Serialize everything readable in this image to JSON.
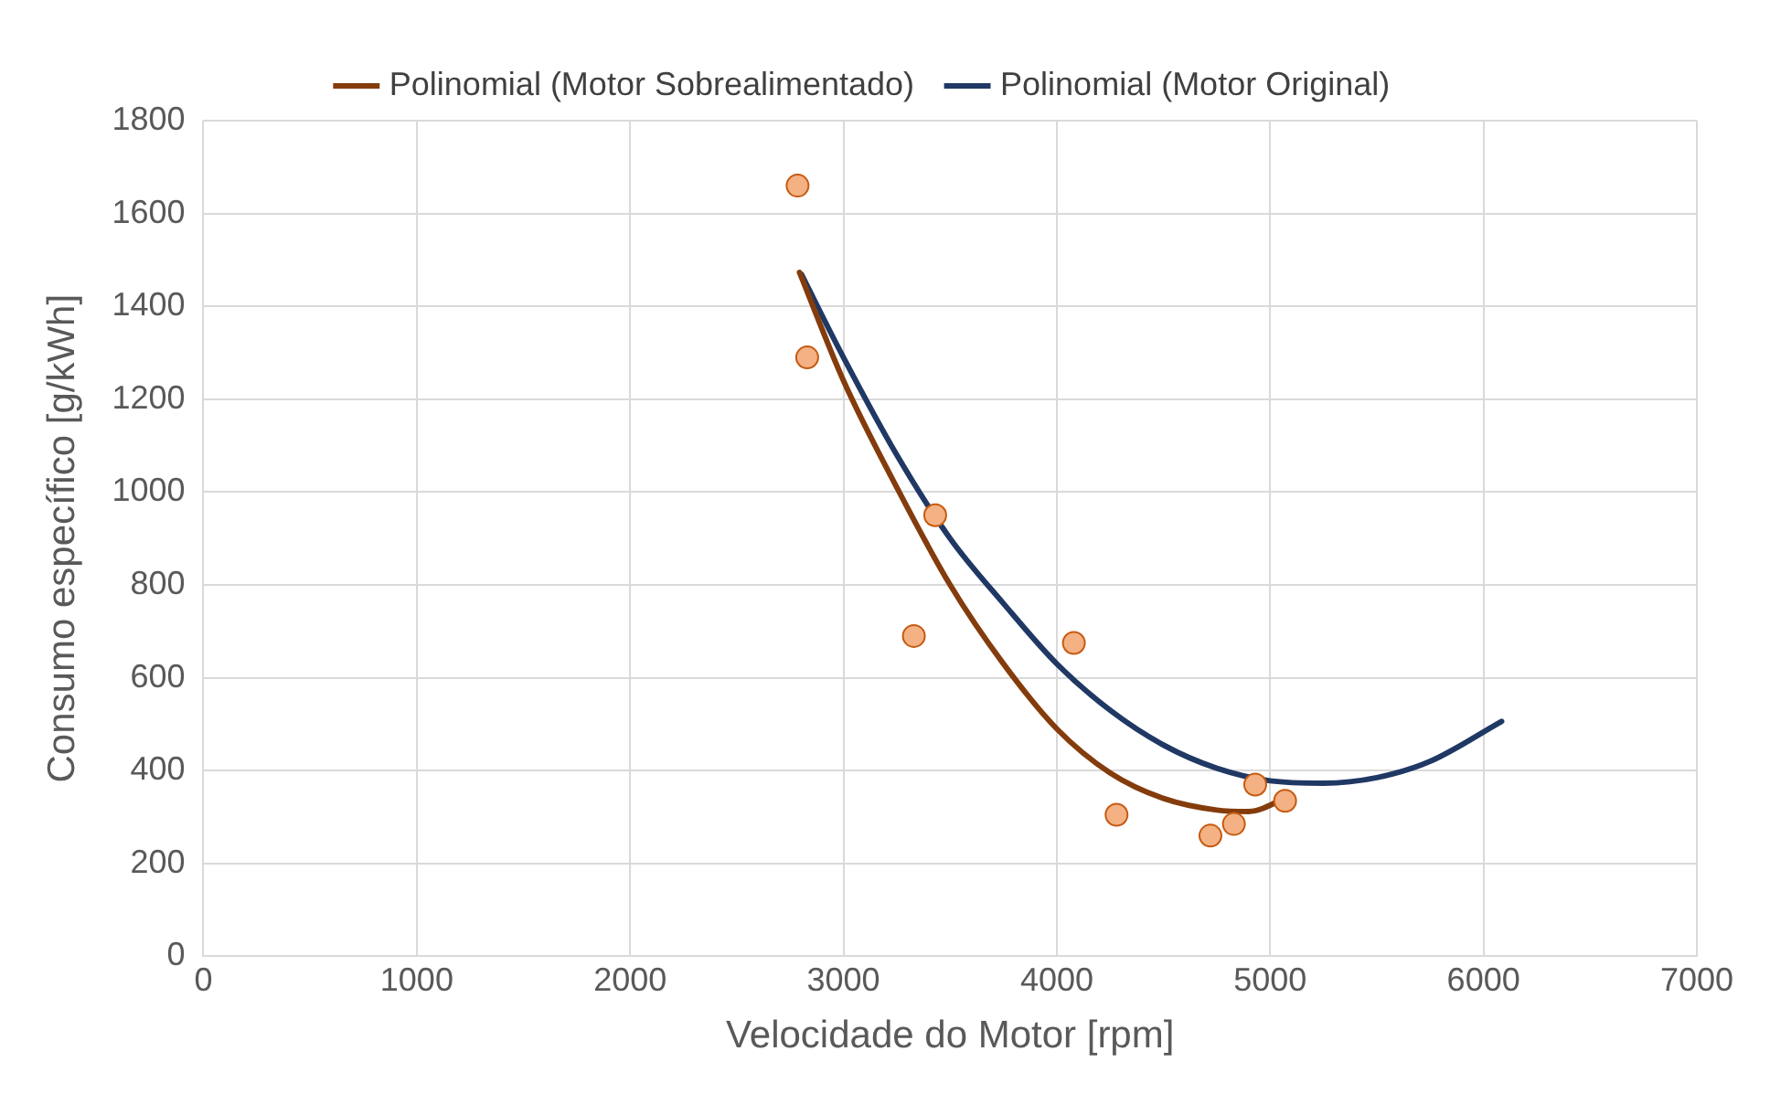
{
  "chart_data": {
    "type": "scatter",
    "xlabel": "Velocidade do Motor [rpm]",
    "ylabel": "Consumo específico [g/kWh]",
    "xlim": [
      0,
      7000
    ],
    "xticks": [
      0,
      1000,
      2000,
      3000,
      4000,
      5000,
      6000,
      7000
    ],
    "ylim": [
      0,
      1800
    ],
    "yticks": [
      0,
      200,
      400,
      600,
      800,
      1000,
      1200,
      1400,
      1600,
      1800
    ],
    "grid": true,
    "legend": "top",
    "series": [
      {
        "type": "scatter",
        "marker": "circle",
        "color": "#f4b183",
        "x": [
          2785,
          2830,
          3430,
          3330,
          4080,
          4280,
          4720,
          4830,
          4930,
          5070
        ],
        "values": [
          1660,
          1290,
          950,
          690,
          675,
          305,
          260,
          285,
          370,
          335
        ]
      },
      {
        "type": "line",
        "marker": "none",
        "name": "Polinomial (Motor Sobrealimentado)",
        "color": "#843c0c",
        "x": [
          2794,
          3000,
          3250,
          3500,
          3750,
          4000,
          4250,
          4500,
          4750,
          4900,
          5090
        ],
        "values": [
          1473,
          1240,
          1010,
          800,
          630,
          490,
          395,
          340,
          315,
          312,
          345
        ]
      },
      {
        "type": "line",
        "marker": "none",
        "name": "Polinomial (Motor Original)",
        "color": "#203864",
        "x": [
          2803,
          3000,
          3250,
          3500,
          3750,
          4000,
          4250,
          4500,
          4750,
          5000,
          5250,
          5500,
          5750,
          6085
        ],
        "values": [
          1469,
          1290,
          1080,
          900,
          760,
          630,
          530,
          455,
          405,
          378,
          373,
          385,
          420,
          506
        ]
      }
    ]
  }
}
